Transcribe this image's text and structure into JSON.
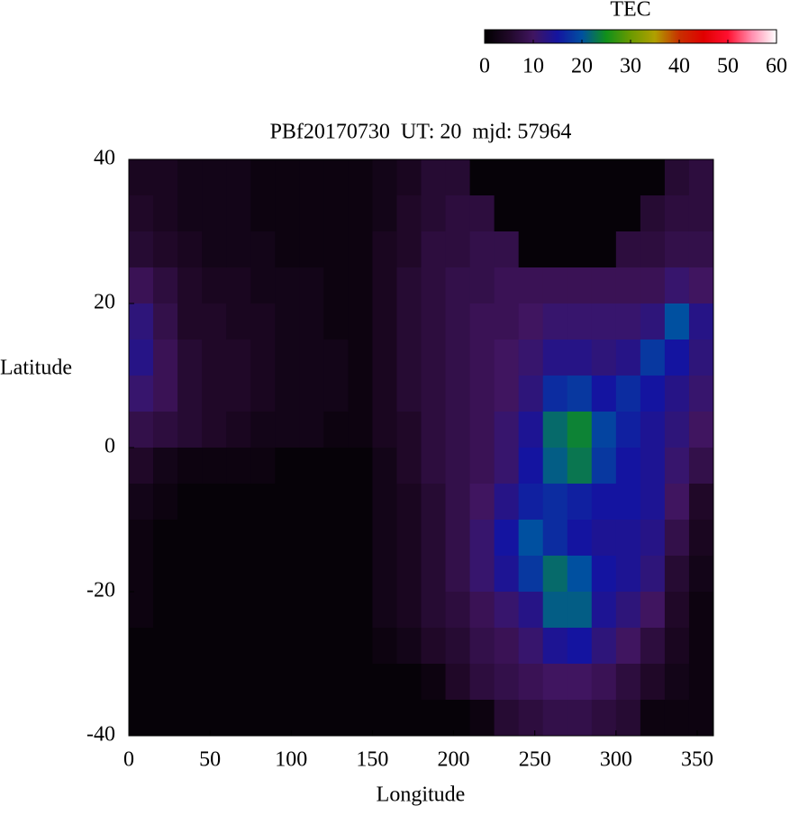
{
  "chart_data": {
    "type": "heatmap",
    "title": "PBf20170730  UT: 20  mjd: 57964",
    "x_label": "Longitude",
    "y_label": "Latitude",
    "colorbar_label": "TEC",
    "x": [
      7.5,
      22.5,
      37.5,
      52.5,
      67.5,
      82.5,
      97.5,
      112.5,
      127.5,
      142.5,
      157.5,
      172.5,
      187.5,
      202.5,
      217.5,
      232.5,
      247.5,
      262.5,
      277.5,
      292.5,
      307.5,
      322.5,
      337.5,
      352.5
    ],
    "y": [
      37.5,
      32.5,
      27.5,
      22.5,
      17.5,
      12.5,
      7.5,
      2.5,
      -2.5,
      -7.5,
      -12.5,
      -17.5,
      -22.5,
      -27.5,
      -32.5,
      -37.5
    ],
    "z": [
      [
        4,
        4,
        3,
        3,
        3,
        2,
        2,
        2,
        2,
        2,
        3,
        4,
        6,
        6,
        1,
        1,
        1,
        1,
        1,
        1,
        1,
        1,
        6,
        7
      ],
      [
        5,
        4,
        3,
        3,
        3,
        2,
        2,
        2,
        2,
        2,
        3,
        5,
        6,
        7,
        7,
        1,
        1,
        1,
        1,
        1,
        1,
        6,
        7,
        7
      ],
      [
        6,
        5,
        4,
        3,
        3,
        3,
        2,
        2,
        2,
        2,
        4,
        5,
        7,
        7,
        8,
        8,
        1,
        1,
        1,
        1,
        7,
        7,
        8,
        8
      ],
      [
        9,
        7,
        5,
        4,
        4,
        3,
        3,
        3,
        2,
        2,
        4,
        6,
        7,
        8,
        8,
        9,
        9,
        9,
        9,
        9,
        9,
        9,
        11,
        10
      ],
      [
        12,
        8,
        5,
        5,
        4,
        4,
        3,
        3,
        2,
        2,
        4,
        6,
        7,
        8,
        9,
        9,
        10,
        11,
        11,
        11,
        11,
        12,
        20,
        13
      ],
      [
        13,
        9,
        6,
        5,
        5,
        4,
        3,
        3,
        3,
        2,
        4,
        6,
        7,
        8,
        9,
        10,
        11,
        13,
        13,
        12,
        13,
        18,
        15,
        12
      ],
      [
        11,
        9,
        6,
        5,
        5,
        4,
        3,
        3,
        3,
        2,
        4,
        6,
        7,
        8,
        9,
        10,
        12,
        17,
        18,
        15,
        17,
        15,
        13,
        11
      ],
      [
        8,
        7,
        6,
        5,
        4,
        3,
        3,
        3,
        2,
        2,
        4,
        5,
        7,
        8,
        9,
        11,
        14,
        22,
        24,
        19,
        16,
        14,
        12,
        10
      ],
      [
        5,
        3,
        2,
        2,
        2,
        2,
        1,
        1,
        1,
        1,
        3,
        5,
        7,
        8,
        9,
        11,
        15,
        21,
        23,
        18,
        15,
        14,
        11,
        8
      ],
      [
        3,
        2,
        1,
        1,
        1,
        1,
        1,
        1,
        1,
        1,
        3,
        4,
        6,
        8,
        10,
        13,
        16,
        17,
        16,
        15,
        15,
        14,
        10,
        5
      ],
      [
        2,
        1,
        1,
        1,
        1,
        1,
        1,
        1,
        1,
        1,
        3,
        4,
        6,
        8,
        11,
        15,
        20,
        17,
        15,
        14,
        14,
        13,
        8,
        4
      ],
      [
        2,
        1,
        1,
        1,
        1,
        1,
        1,
        1,
        1,
        1,
        3,
        4,
        6,
        8,
        11,
        14,
        18,
        22,
        20,
        15,
        14,
        12,
        6,
        3
      ],
      [
        2,
        1,
        1,
        1,
        1,
        1,
        1,
        1,
        1,
        1,
        3,
        4,
        6,
        7,
        9,
        11,
        13,
        21,
        21,
        14,
        12,
        10,
        5,
        2
      ],
      [
        1,
        1,
        1,
        1,
        1,
        1,
        1,
        1,
        1,
        1,
        2,
        3,
        5,
        6,
        8,
        9,
        11,
        14,
        15,
        12,
        10,
        7,
        4,
        2
      ],
      [
        1,
        1,
        1,
        1,
        1,
        1,
        1,
        1,
        1,
        1,
        1,
        1,
        2,
        5,
        7,
        8,
        9,
        10,
        10,
        9,
        7,
        5,
        3,
        2
      ],
      [
        1,
        1,
        1,
        1,
        1,
        1,
        1,
        1,
        1,
        1,
        1,
        1,
        1,
        1,
        2,
        6,
        7,
        8,
        8,
        7,
        6,
        2,
        2,
        2
      ]
    ],
    "xlim": [
      0,
      360
    ],
    "xticks": [
      0,
      50,
      100,
      150,
      200,
      250,
      300,
      350
    ],
    "ylim": [
      -40,
      40
    ],
    "yticks": [
      -40,
      -20,
      0,
      20,
      40
    ],
    "clim": [
      0,
      60
    ],
    "cticks": [
      0,
      10,
      20,
      30,
      40,
      50,
      60
    ],
    "colormap": [
      "#000000",
      "#200828",
      "#401560",
      "#1414a0",
      "#0050a0",
      "#10901a",
      "#6a9a00",
      "#b0a000",
      "#c83000",
      "#e00000",
      "#ff1030",
      "#ff90b0",
      "#ffffff"
    ]
  }
}
